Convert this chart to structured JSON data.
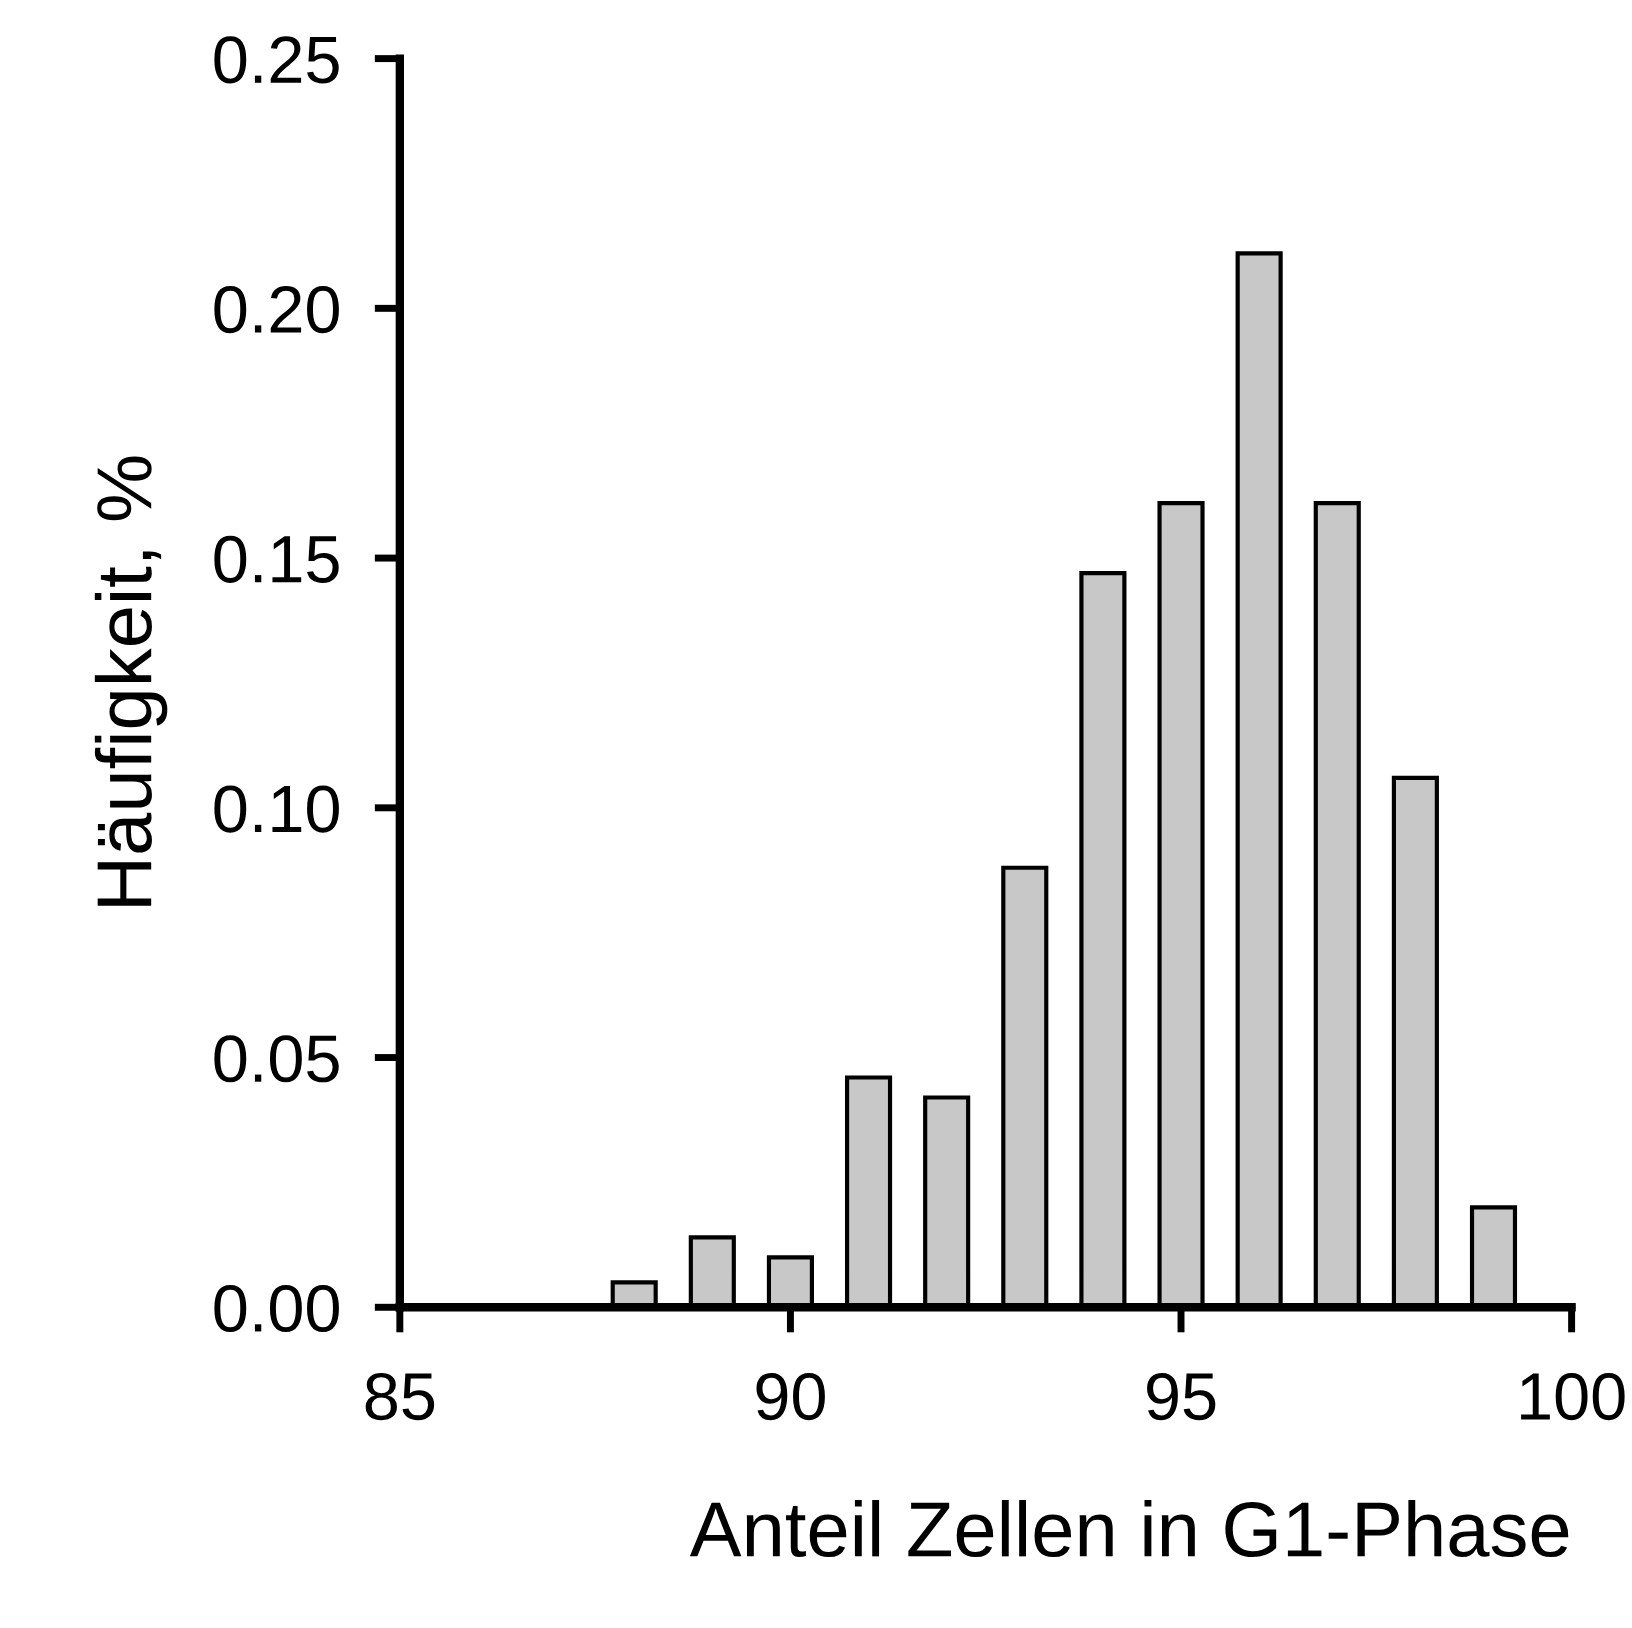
{
  "chart_data": {
    "type": "bar",
    "xlabel": "Anteil Zellen in G1-Phase",
    "ylabel": "Häufigkeit, %",
    "x": [
      88,
      89,
      90,
      91,
      92,
      93,
      94,
      95,
      96,
      97,
      98,
      99
    ],
    "values": [
      0.005,
      0.014,
      0.01,
      0.046,
      0.042,
      0.088,
      0.147,
      0.161,
      0.211,
      0.161,
      0.106,
      0.02
    ],
    "color": "#c8c8c8",
    "xlim": [
      85,
      100
    ],
    "xticks": [
      85,
      90,
      95,
      100
    ],
    "ylim": [
      0,
      0.25
    ],
    "yticks": [
      {
        "value": 0,
        "label": "0.00"
      },
      {
        "value": 0.05,
        "label": "0.05"
      },
      {
        "value": 0.1,
        "label": "0.10"
      },
      {
        "value": 0.15,
        "label": "0.15"
      },
      {
        "value": 0.2,
        "label": "0.20"
      },
      {
        "value": 0.25,
        "label": "0.25"
      }
    ],
    "grid": false
  }
}
